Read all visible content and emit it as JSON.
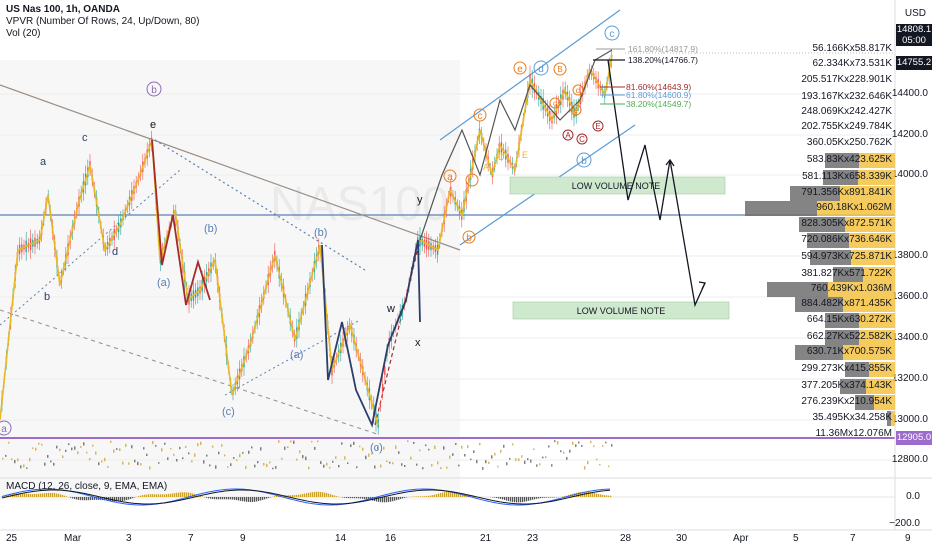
{
  "header": {
    "symbol_title": "US Nas 100, 1h, OANDA",
    "vpvr_label": "VPVR (Number Of Rows, 24, Up/Down, 80)",
    "vol_label": "Vol (20)",
    "currency": "USD",
    "macd_label": "MACD (12, 26, close, 9, EMA, EMA)"
  },
  "price_axis": {
    "ticks": [
      "14400.0",
      "14200.0",
      "14000.0",
      "13800.0",
      "13600.0",
      "13400.0",
      "13200.0",
      "13000.0",
      "12800.0"
    ],
    "price_tag": "14808.1",
    "countdown": "05:00",
    "price_tag2": "14755.2",
    "level_tag": "12905.0"
  },
  "macd_axis": {
    "ticks": [
      "0.0",
      "−200.0"
    ]
  },
  "date_axis": {
    "labels": [
      "25",
      "Mar",
      "3",
      "7",
      "9",
      "14",
      "16",
      "21",
      "23",
      "28",
      "30",
      "Apr",
      "5",
      "7",
      "9"
    ]
  },
  "volume_profile": {
    "rows": [
      {
        "label": "56.166Kx58.817K"
      },
      {
        "label": "62.334Kx73.531K"
      },
      {
        "label": "205.517Kx228.901K"
      },
      {
        "label": "193.167Kx232.646K"
      },
      {
        "label": "248.069Kx242.427K"
      },
      {
        "label": "202.755Kx249.784K"
      },
      {
        "label": "360.05Kx250.762K"
      },
      {
        "label": "583.83Kx423.625K"
      },
      {
        "label": "581.113Kx658.339K"
      },
      {
        "label": "791.356Kx891.841K"
      },
      {
        "label": "960.18Kx1.062M"
      },
      {
        "label": "828.305Kx872.571K"
      },
      {
        "label": "720.086Kx736.646K"
      },
      {
        "label": "594.973Kx725.871K"
      },
      {
        "label": "381.827Kx571.722K"
      },
      {
        "label": "760.439Kx1.036M"
      },
      {
        "label": "884.482Kx871.435K"
      },
      {
        "label": "664.15Kx630.272K"
      },
      {
        "label": "662.27Kx522.582K"
      },
      {
        "label": "630.71Kx700.575K"
      },
      {
        "label": "299.273Kx415.855K"
      },
      {
        "label": "377.205Kx374.143K"
      },
      {
        "label": "276.239Kx210.954K"
      },
      {
        "label": "35.495Kx34.258K"
      },
      {
        "label": "11.36Mx12.076M"
      }
    ]
  },
  "annotations": {
    "low_volume_note": "LOW VOLUME NOTE",
    "fib_1618": "161.80%(14817.9)",
    "fib_1382": "138.20%(14766.7)",
    "fib_816": "81.60%(14643.9)",
    "fib_618": "61.80%(14600.9)",
    "fib_382": "38.20%(14549.7)",
    "wave_a": "a",
    "wave_b": "b",
    "wave_c": "c",
    "wave_d": "d",
    "wave_e": "e",
    "wave_w": "w",
    "wave_x": "x",
    "wave_y": "y",
    "wave_pa": "(a)",
    "wave_pb": "(b)",
    "wave_pc": "(c)",
    "circ_a": "a",
    "circ_b": "b",
    "circ_c": "c",
    "circ_d": "d",
    "circ_e": "e",
    "sm_a": "a",
    "sm_b": "b",
    "sm_c": "c",
    "sm_d": "d",
    "sm_e": "e",
    "sm_A": "A",
    "sm_B": "B",
    "sm_C": "C",
    "sm_D": "D",
    "sm_E": "E"
  },
  "colors": {
    "up": "#26a69a",
    "down": "#ef5350",
    "wave_yellow": "#e8b923",
    "wave_red": "#a52a2a",
    "wave_navy": "#2c3e6b",
    "channel_blue": "#5b9bd5",
    "purple_level": "#9c6bcc",
    "vp_dark": "#6e6e6e",
    "vp_gold": "#f5c242",
    "note_green": "#cfe9cf"
  }
}
